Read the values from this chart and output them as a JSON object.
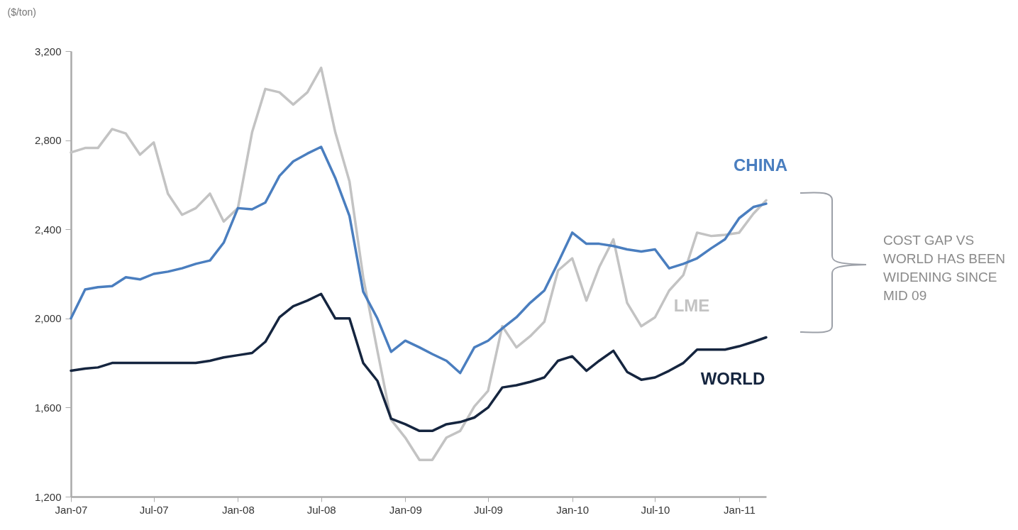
{
  "chart_data": {
    "type": "line",
    "ylabel": "($/ton)",
    "x": [
      "2007-01",
      "2007-02",
      "2007-03",
      "2007-04",
      "2007-05",
      "2007-06",
      "2007-07",
      "2007-08",
      "2007-09",
      "2007-10",
      "2007-11",
      "2007-12",
      "2008-01",
      "2008-02",
      "2008-03",
      "2008-04",
      "2008-05",
      "2008-06",
      "2008-07",
      "2008-08",
      "2008-09",
      "2008-10",
      "2008-11",
      "2008-12",
      "2009-01",
      "2009-02",
      "2009-03",
      "2009-04",
      "2009-05",
      "2009-06",
      "2009-07",
      "2009-08",
      "2009-09",
      "2009-10",
      "2009-11",
      "2009-12",
      "2010-01",
      "2010-02",
      "2010-03",
      "2010-04",
      "2010-05",
      "2010-06",
      "2010-07",
      "2010-08",
      "2010-09",
      "2010-10",
      "2010-11",
      "2010-12",
      "2011-01",
      "2011-02",
      "2011-03"
    ],
    "series": [
      {
        "name": "LME",
        "color": "#c3c3c3",
        "values": [
          2745,
          2765,
          2765,
          2850,
          2830,
          2735,
          2790,
          2560,
          2465,
          2495,
          2560,
          2435,
          2495,
          2835,
          3030,
          3015,
          2960,
          3015,
          3125,
          2835,
          2615,
          2185,
          1855,
          1545,
          1465,
          1365,
          1365,
          1465,
          1495,
          1605,
          1675,
          1965,
          1870,
          1920,
          1985,
          2215,
          2270,
          2080,
          2230,
          2355,
          2070,
          1965,
          2005,
          2125,
          2195,
          2385,
          2370,
          2375,
          2385,
          2470,
          2530
        ]
      },
      {
        "name": "CHINA",
        "color": "#4a7ebf",
        "values": [
          2000,
          2130,
          2140,
          2145,
          2185,
          2175,
          2200,
          2210,
          2225,
          2245,
          2260,
          2340,
          2495,
          2490,
          2520,
          2640,
          2705,
          2740,
          2770,
          2630,
          2460,
          2120,
          2000,
          1850,
          1900,
          1870,
          1840,
          1810,
          1755,
          1870,
          1900,
          1955,
          2005,
          2070,
          2125,
          2250,
          2385,
          2335,
          2335,
          2325,
          2310,
          2300,
          2310,
          2225,
          2245,
          2270,
          2315,
          2355,
          2450,
          2500,
          2515
        ]
      },
      {
        "name": "WORLD",
        "color": "#15253f",
        "values": [
          1765,
          1775,
          1780,
          1800,
          1800,
          1800,
          1800,
          1800,
          1800,
          1800,
          1810,
          1825,
          1835,
          1845,
          1895,
          2005,
          2055,
          2080,
          2110,
          2000,
          2000,
          1800,
          1720,
          1550,
          1525,
          1495,
          1495,
          1525,
          1535,
          1555,
          1600,
          1690,
          1700,
          1715,
          1735,
          1810,
          1830,
          1765,
          1810,
          1855,
          1760,
          1725,
          1735,
          1765,
          1800,
          1860,
          1860,
          1860,
          1875,
          1895,
          1915
        ]
      }
    ],
    "xlim": [
      "2007-01",
      "2011-03"
    ],
    "xticks": [
      {
        "value": "2007-01",
        "label": "Jan-07"
      },
      {
        "value": "2007-07",
        "label": "Jul-07"
      },
      {
        "value": "2008-01",
        "label": "Jan-08"
      },
      {
        "value": "2008-07",
        "label": "Jul-08"
      },
      {
        "value": "2009-01",
        "label": "Jan-09"
      },
      {
        "value": "2009-07",
        "label": "Jul-09"
      },
      {
        "value": "2010-01",
        "label": "Jan-10"
      },
      {
        "value": "2010-07",
        "label": "Jul-10"
      },
      {
        "value": "2011-01",
        "label": "Jan-11"
      }
    ],
    "ylim": [
      1200,
      3200
    ],
    "yticks": [
      {
        "value": 1200,
        "label": "1,200"
      },
      {
        "value": 1600,
        "label": "1,600"
      },
      {
        "value": 2000,
        "label": "2,000"
      },
      {
        "value": 2400,
        "label": "2,400"
      },
      {
        "value": 2800,
        "label": "2,800"
      },
      {
        "value": 3200,
        "label": "3,200"
      }
    ],
    "grid": false,
    "legend": false,
    "annotations": [
      "COST GAP VS WORLD HAS BEEN WIDENING SINCE MID 09"
    ]
  }
}
